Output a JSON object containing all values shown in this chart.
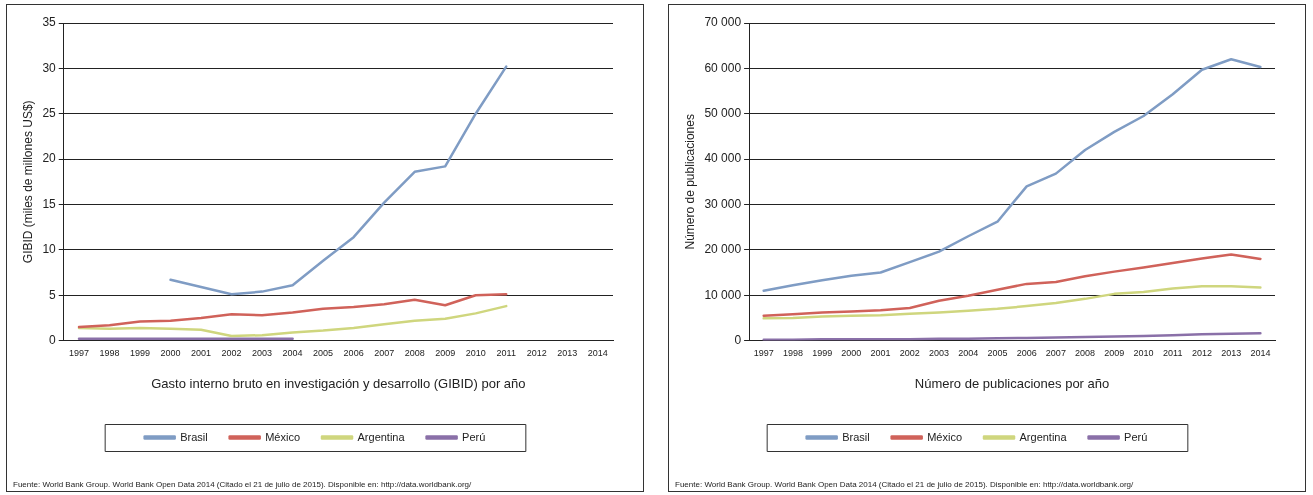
{
  "chart_data": [
    {
      "type": "line",
      "xlabel": "Gasto interno bruto en investigación y desarrollo (GIBID) por año",
      "ylabel": "GIBID (miles de millones US$)",
      "categories": [
        "1997",
        "1998",
        "1999",
        "2000",
        "2001",
        "2002",
        "2003",
        "2004",
        "2005",
        "2006",
        "2007",
        "2008",
        "2009",
        "2010",
        "2011",
        "2012",
        "2013",
        "2014"
      ],
      "series": [
        {
          "name": "Brasil",
          "color": "#7f9cc4",
          "values": [
            null,
            null,
            null,
            6.7,
            5.9,
            5.1,
            5.4,
            6.1,
            8.8,
            11.4,
            15.2,
            18.6,
            19.2,
            25.0,
            30.2,
            null,
            null,
            null
          ]
        },
        {
          "name": "México",
          "color": "#d0625a",
          "values": [
            1.5,
            1.7,
            2.1,
            2.2,
            2.5,
            2.9,
            2.8,
            3.1,
            3.5,
            3.7,
            4.0,
            4.5,
            3.9,
            5.0,
            5.1,
            null,
            null,
            null
          ]
        },
        {
          "name": "Argentina",
          "color": "#cfd67e",
          "values": [
            1.4,
            1.3,
            1.4,
            1.3,
            1.2,
            0.5,
            0.6,
            0.9,
            1.1,
            1.4,
            1.8,
            2.2,
            2.4,
            3.0,
            3.8,
            null,
            null,
            null
          ]
        },
        {
          "name": "Perú",
          "color": "#8a70a8",
          "values": [
            0.2,
            0.2,
            0.2,
            0.2,
            0.2,
            0.2,
            0.2,
            0.2,
            null,
            null,
            null,
            null,
            null,
            null,
            null,
            null,
            null,
            null
          ]
        }
      ],
      "ylim": [
        0,
        35
      ],
      "yticks": [
        0,
        5,
        10,
        15,
        20,
        25,
        30,
        35
      ],
      "grid": "y",
      "legend": "bottom",
      "annotations": [
        "Fuente:",
        "World Bank Group. World Bank Open Data 2014 (Citado el 21 de julio de 2015). Disponible en: http://data.worldbank.org/"
      ]
    },
    {
      "type": "line",
      "xlabel": "Número de publicaciones por año",
      "ylabel": "Número de publicaciones",
      "categories": [
        "1997",
        "1998",
        "1999",
        "2000",
        "2001",
        "2002",
        "2003",
        "2004",
        "2005",
        "2006",
        "2007",
        "2008",
        "2009",
        "2010",
        "2011",
        "2012",
        "2013",
        "2014"
      ],
      "series": [
        {
          "name": "Brasil",
          "color": "#7f9cc4",
          "values": [
            11000,
            12200,
            13300,
            14300,
            15000,
            17300,
            19600,
            23000,
            26200,
            34000,
            36800,
            42000,
            46000,
            49500,
            54300,
            59700,
            62000,
            60300
          ]
        },
        {
          "name": "México",
          "color": "#d0625a",
          "values": [
            5500,
            5800,
            6200,
            6400,
            6700,
            7200,
            8800,
            9900,
            11200,
            12500,
            12900,
            14200,
            15200,
            16100,
            17100,
            18100,
            19000,
            18000
          ]
        },
        {
          "name": "Argentina",
          "color": "#cfd67e",
          "values": [
            4900,
            5000,
            5300,
            5500,
            5600,
            5900,
            6200,
            6600,
            7000,
            7600,
            8300,
            9200,
            10300,
            10700,
            11500,
            12000,
            12000,
            11700
          ]
        },
        {
          "name": "Perú",
          "color": "#8a70a8",
          "values": [
            200,
            200,
            300,
            300,
            300,
            300,
            400,
            400,
            500,
            600,
            700,
            800,
            900,
            1000,
            1200,
            1400,
            1500,
            1600
          ]
        }
      ],
      "ylim": [
        0,
        70000
      ],
      "yticks": [
        0,
        {
          "value": 10000,
          "label": "10 000"
        },
        {
          "value": 20000,
          "label": "20 000"
        },
        {
          "value": 30000,
          "label": "30 000"
        },
        {
          "value": 40000,
          "label": "40 000"
        },
        {
          "value": 50000,
          "label": "50 000"
        },
        {
          "value": 60000,
          "label": "60 000"
        },
        {
          "value": 70000,
          "label": "70 000"
        }
      ],
      "grid": "y",
      "legend": "bottom",
      "annotations": [
        "Fuente:",
        "World Bank Group. World Bank Open Data 2014 (Citado el 21 de julio de 2015). Disponible en: http://data.worldbank.org/"
      ]
    }
  ]
}
